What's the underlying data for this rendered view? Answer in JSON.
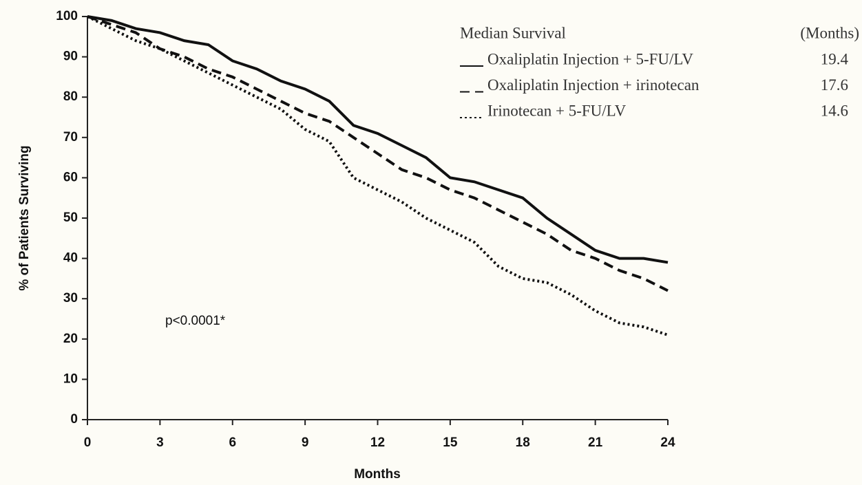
{
  "chart_data": {
    "type": "line",
    "xlabel": "Months",
    "ylabel": "% of Patients Surviving",
    "annotation": "p<0.0001*",
    "legend_title": "Median Survival",
    "legend_unit": "(Months)",
    "x": [
      0,
      1,
      2,
      3,
      4,
      5,
      6,
      7,
      8,
      9,
      10,
      11,
      12,
      13,
      14,
      15,
      16,
      17,
      18,
      19,
      20,
      21,
      22,
      23,
      24
    ],
    "series": [
      {
        "name": "Oxaliplatin Injection + 5-FU/LV",
        "median": 19.4,
        "color": "#111111",
        "dash": "solid",
        "values": [
          100,
          99,
          97,
          96,
          94,
          93,
          89,
          87,
          84,
          82,
          79,
          73,
          71,
          68,
          65,
          60,
          59,
          57,
          55,
          50,
          46,
          42,
          40,
          40,
          39
        ]
      },
      {
        "name": "Oxaliplatin Injection + irinotecan",
        "median": 17.6,
        "color": "#111111",
        "dash": "dashed",
        "values": [
          100,
          98,
          96,
          92,
          90,
          87,
          85,
          82,
          79,
          76,
          74,
          70,
          66,
          62,
          60,
          57,
          55,
          52,
          49,
          46,
          42,
          40,
          37,
          35,
          32
        ]
      },
      {
        "name": "Irinotecan + 5-FU/LV",
        "median": 14.6,
        "color": "#111111",
        "dash": "dotted",
        "values": [
          100,
          97,
          94,
          92,
          89,
          86,
          83,
          80,
          77,
          72,
          69,
          60,
          57,
          54,
          50,
          47,
          44,
          38,
          35,
          34,
          31,
          27,
          24,
          23,
          21
        ]
      }
    ],
    "xlim": [
      0,
      24
    ],
    "xticks": [
      0,
      3,
      6,
      9,
      12,
      15,
      18,
      21,
      24
    ],
    "ylim": [
      0,
      100
    ],
    "yticks": [
      0,
      10,
      20,
      30,
      40,
      50,
      60,
      70,
      80,
      90,
      100
    ],
    "grid": false
  }
}
